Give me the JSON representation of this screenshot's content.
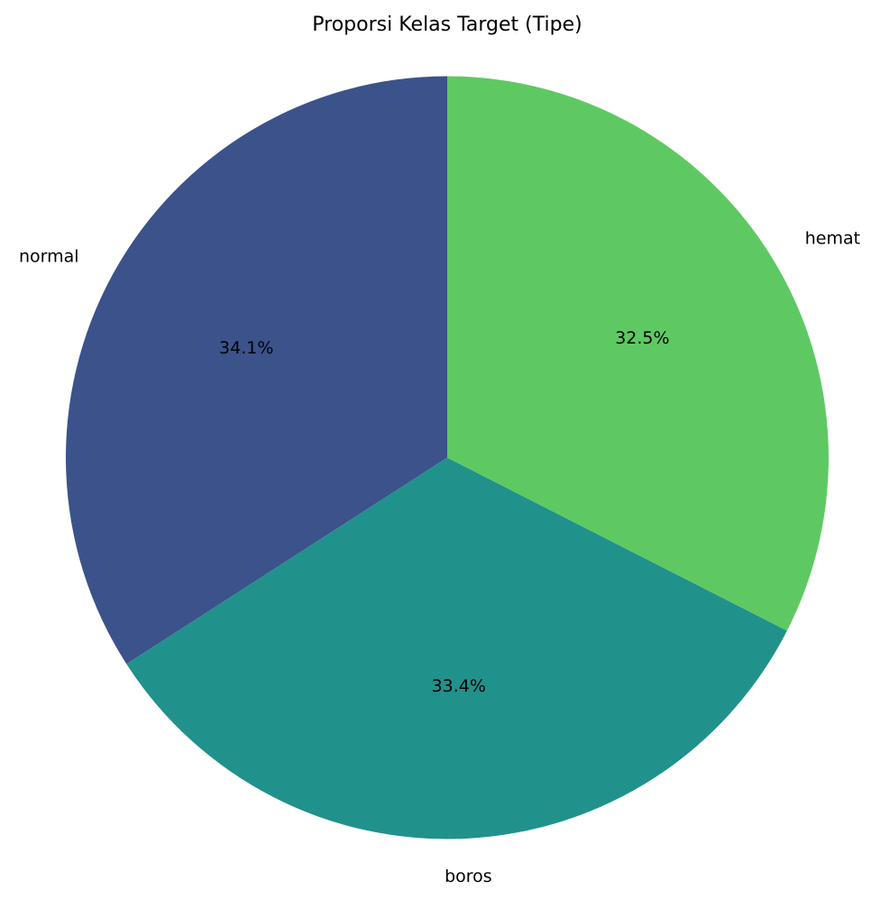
{
  "chart_data": {
    "type": "pie",
    "title": "Proporsi Kelas Target (Tipe)",
    "start_angle_deg": 90,
    "direction": "counterclockwise",
    "slices": [
      {
        "label": "normal",
        "value": 34.1,
        "pct_label": "34.1%",
        "color": "#3b528b"
      },
      {
        "label": "boros",
        "value": 33.4,
        "pct_label": "33.4%",
        "color": "#21918c"
      },
      {
        "label": "hemat",
        "value": 32.5,
        "pct_label": "32.5%",
        "color": "#5ec962"
      }
    ]
  }
}
